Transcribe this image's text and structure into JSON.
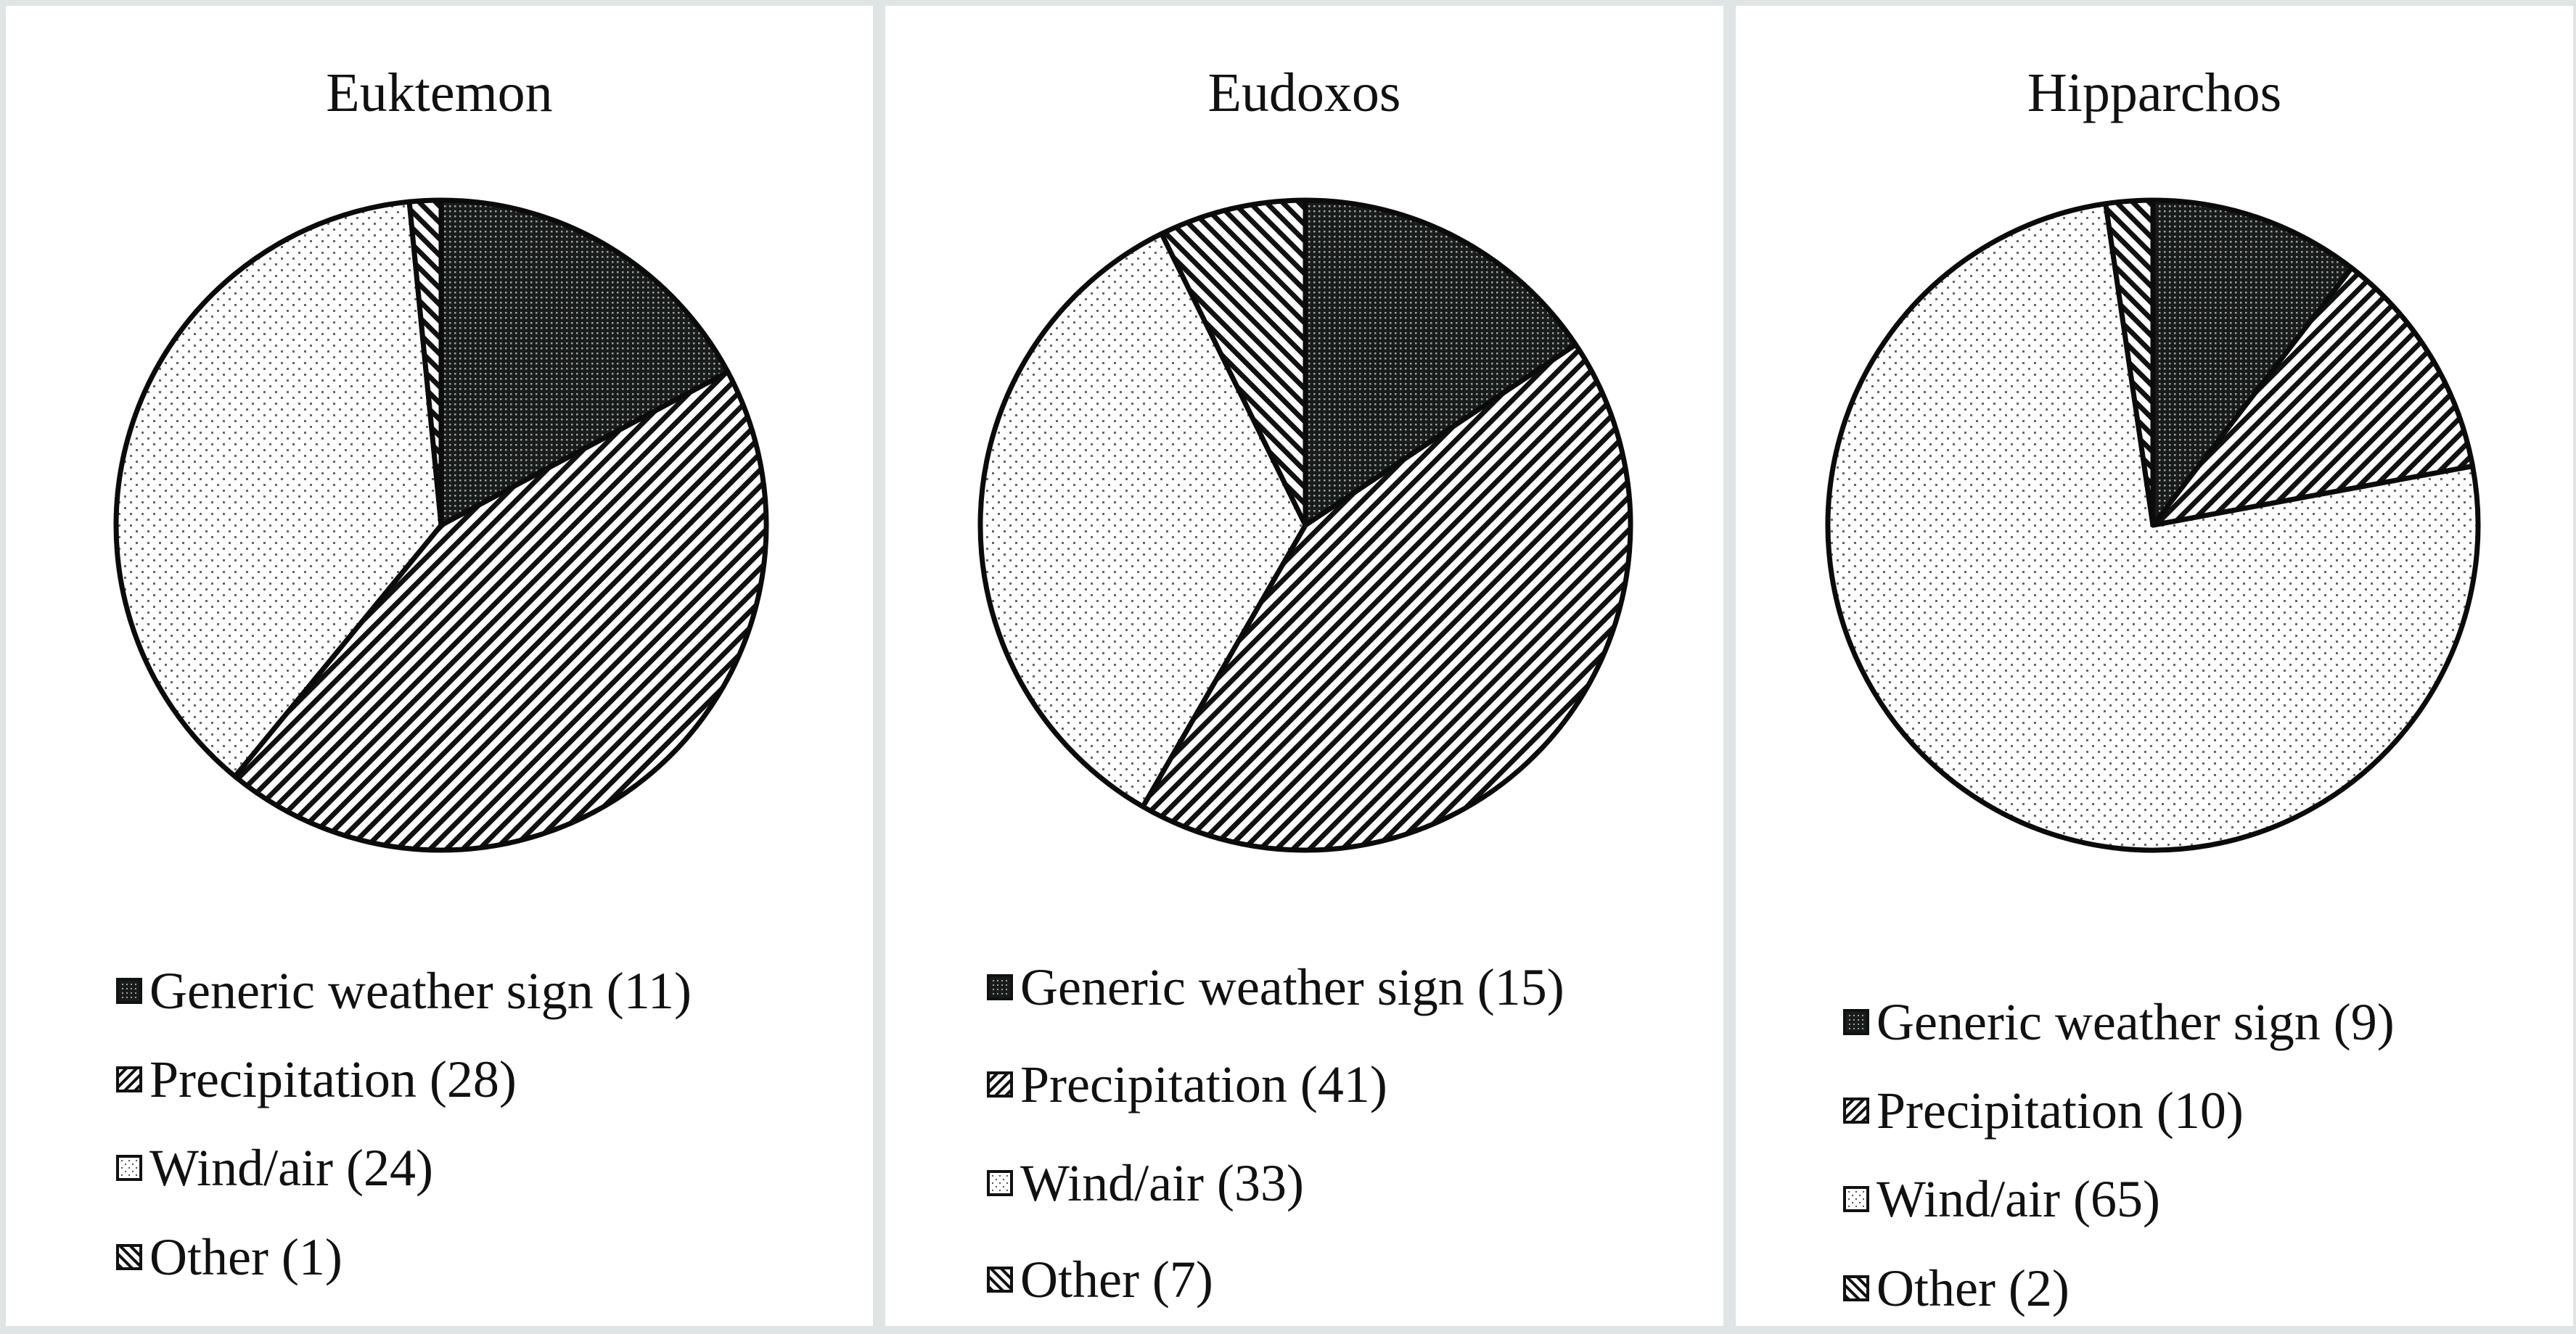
{
  "chart_data": [
    {
      "type": "pie",
      "title": "Euktemon",
      "categories": [
        "Generic weather sign",
        "Precipitation",
        "Wind/air",
        "Other"
      ],
      "values": [
        11,
        28,
        24,
        1
      ],
      "legend_labels": [
        "Generic weather sign (11)",
        "Precipitation (28)",
        "Wind/air (24)",
        "Other (1)"
      ],
      "start_angle": "12 o'clock, clockwise",
      "legend_position": "bottom"
    },
    {
      "type": "pie",
      "title": "Eudoxos",
      "categories": [
        "Generic weather sign",
        "Precipitation",
        "Wind/air",
        "Other"
      ],
      "values": [
        15,
        41,
        33,
        7
      ],
      "legend_labels": [
        "Generic weather sign (15)",
        "Precipitation (41)",
        "Wind/air (33)",
        "Other (7)"
      ],
      "start_angle": "12 o'clock, clockwise",
      "legend_position": "bottom"
    },
    {
      "type": "pie",
      "title": "Hipparchos",
      "categories": [
        "Generic weather sign",
        "Precipitation",
        "Wind/air",
        "Other"
      ],
      "values": [
        9,
        10,
        65,
        2
      ],
      "legend_labels": [
        "Generic weather sign (9)",
        "Precipitation (10)",
        "Wind/air (65)",
        "Other (2)"
      ],
      "start_angle": "12 o'clock, clockwise",
      "legend_position": "bottom"
    }
  ],
  "patterns": {
    "Generic weather sign": "dense-dark-dots",
    "Precipitation": "diagonal-stripes-down",
    "Wind/air": "sparse-light-dots",
    "Other": "diagonal-stripes-up"
  },
  "colors": {
    "stroke": "#0b0b0b",
    "background": "#ffffff",
    "panel_border": "#dfe4e4"
  },
  "panels": [
    {
      "title": "Euktemon",
      "legend": [
        "Generic weather sign (11)",
        "Precipitation (28)",
        "Wind/air (24)",
        "Other (1)"
      ]
    },
    {
      "title": "Eudoxos",
      "legend": [
        "Generic weather sign (15)",
        "Precipitation (41)",
        "Wind/air (33)",
        "Other (7)"
      ]
    },
    {
      "title": "Hipparchos",
      "legend": [
        "Generic weather sign (9)",
        "Precipitation (10)",
        "Wind/air (65)",
        "Other (2)"
      ]
    }
  ]
}
